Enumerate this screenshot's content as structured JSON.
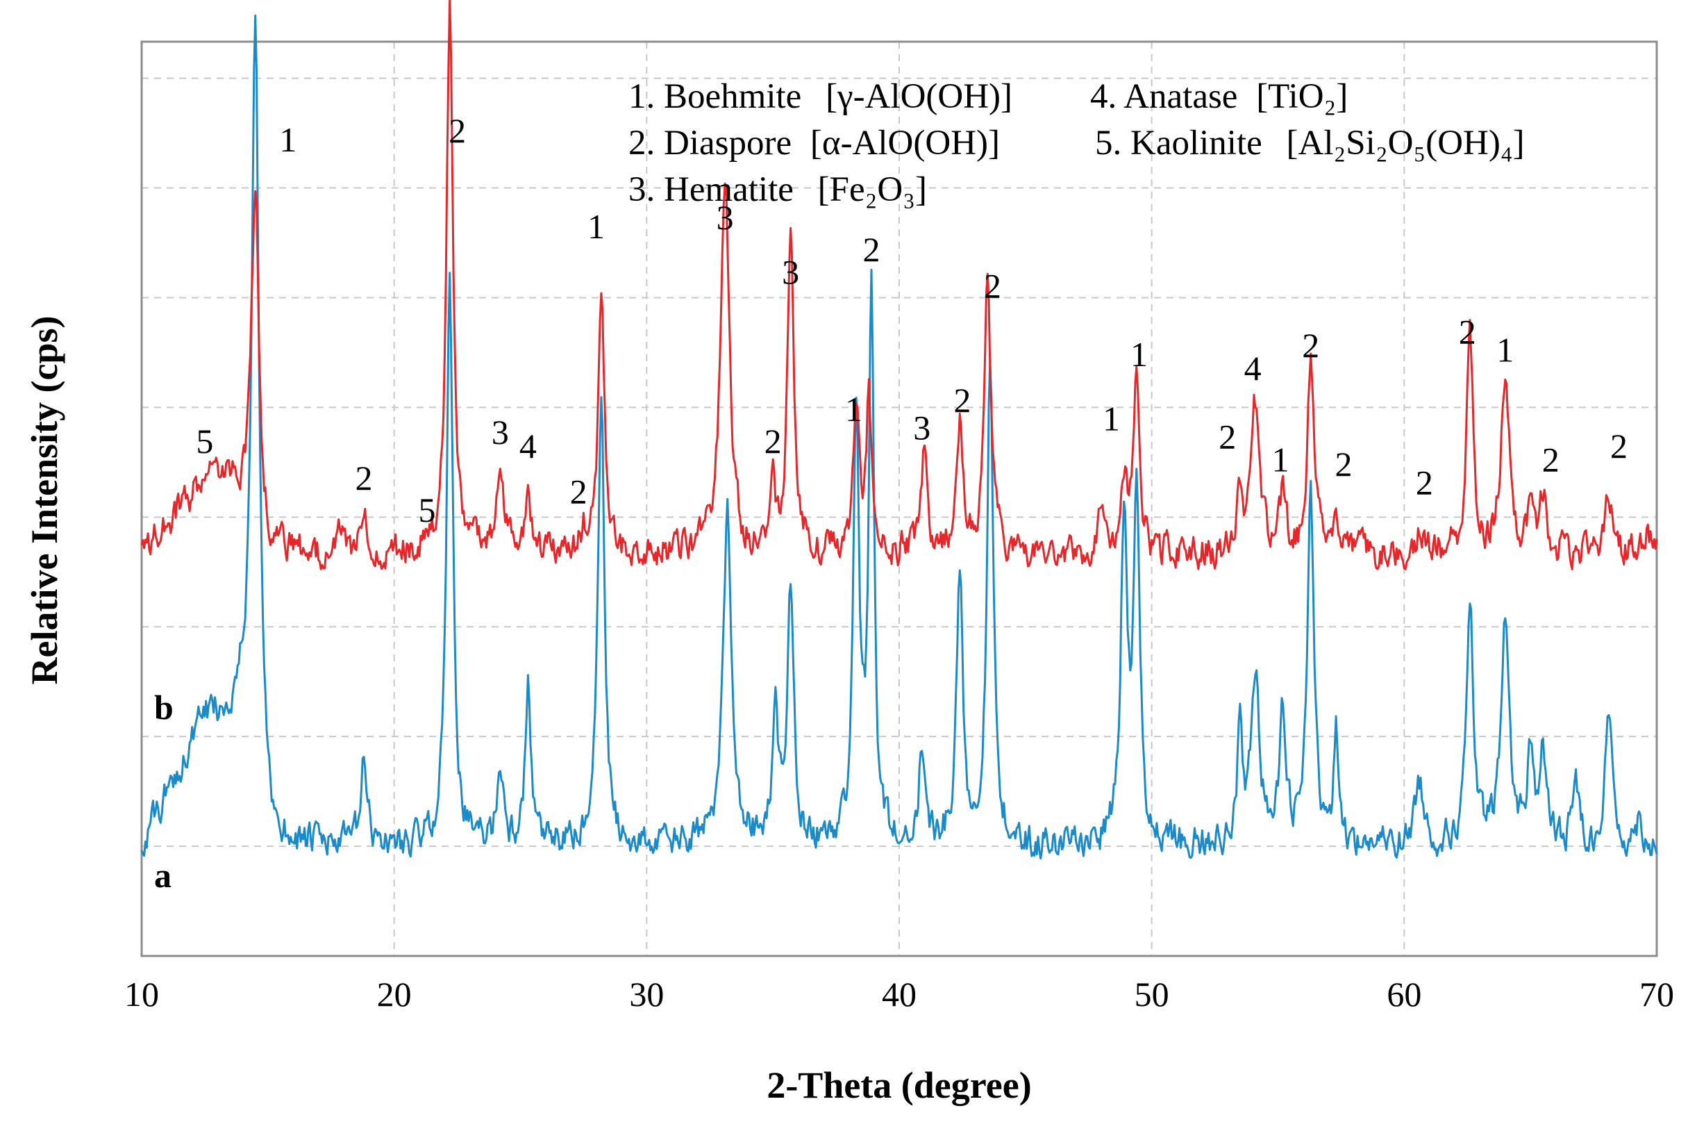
{
  "chart_data": {
    "type": "line",
    "title": "",
    "xlabel": "2-Theta (degree)",
    "ylabel": "Relative Intensity (cps)",
    "xlim": [
      10,
      70
    ],
    "ylim": [
      0,
      100
    ],
    "x_ticks": [
      10,
      20,
      30,
      40,
      50,
      60,
      70
    ],
    "y_grid_levels": [
      0,
      12,
      24,
      36,
      48,
      60,
      72,
      84,
      96
    ],
    "grid": true,
    "legend": [
      {
        "id": "1",
        "text": "1. Boehmite",
        "formula": "[γ-AlO(OH)]"
      },
      {
        "id": "2",
        "text": "2. Diaspore",
        "formula": "[α-AlO(OH)]"
      },
      {
        "id": "3",
        "text": "3. Hematite",
        "formula": "[Fe₂O₃]"
      },
      {
        "id": "4",
        "text": "4. Anatase",
        "formula": "[TiO₂]"
      },
      {
        "id": "5",
        "text": "5. Kaolinite",
        "formula": "[Al₂Si₂O₅(OH)₄]"
      }
    ],
    "series": [
      {
        "name": "a",
        "color": "#1a8ac8",
        "baseline": 12,
        "hump": {
          "start": 10,
          "rise_end": 12.5,
          "plateau_end": 14.0,
          "fall_end": 15.0,
          "height": 14
        },
        "peaks": [
          [
            14.5,
            82,
            0.18
          ],
          [
            18.8,
            9,
            0.15
          ],
          [
            22.2,
            63,
            0.15
          ],
          [
            24.2,
            9,
            0.15
          ],
          [
            25.3,
            18,
            0.12
          ],
          [
            28.2,
            50,
            0.15
          ],
          [
            33.2,
            37,
            0.2
          ],
          [
            35.1,
            17,
            0.12
          ],
          [
            35.7,
            28,
            0.15
          ],
          [
            38.3,
            45,
            0.15
          ],
          [
            38.9,
            61,
            0.12
          ],
          [
            40.9,
            10,
            0.15
          ],
          [
            42.4,
            29,
            0.15
          ],
          [
            43.6,
            52,
            0.15
          ],
          [
            48.9,
            35,
            0.15
          ],
          [
            49.4,
            37,
            0.15
          ],
          [
            53.5,
            13,
            0.12
          ],
          [
            54.1,
            19,
            0.2
          ],
          [
            55.2,
            14,
            0.15
          ],
          [
            56.3,
            39,
            0.15
          ],
          [
            57.3,
            12,
            0.12
          ],
          [
            60.6,
            7,
            0.2
          ],
          [
            62.6,
            27,
            0.15
          ],
          [
            64.0,
            24,
            0.2
          ],
          [
            65.0,
            10,
            0.15
          ],
          [
            65.5,
            10,
            0.15
          ],
          [
            66.8,
            7,
            0.15
          ],
          [
            68.1,
            15,
            0.15
          ],
          [
            69.3,
            3,
            0.15
          ]
        ]
      },
      {
        "name": "b",
        "color": "#e8262a",
        "baseline": 44,
        "hump": {
          "start": 10,
          "rise_end": 12.5,
          "plateau_end": 13.5,
          "fall_end": 15.0,
          "height": 8
        },
        "peaks": [
          [
            14.5,
            38,
            0.18
          ],
          [
            17.8,
            2,
            0.15
          ],
          [
            18.8,
            5,
            0.15
          ],
          [
            22.2,
            60,
            0.15
          ],
          [
            24.2,
            10,
            0.15
          ],
          [
            25.3,
            8,
            0.12
          ],
          [
            27.5,
            2,
            0.15
          ],
          [
            28.2,
            28,
            0.15
          ],
          [
            33.1,
            42,
            0.2
          ],
          [
            35.0,
            7,
            0.12
          ],
          [
            35.7,
            36,
            0.15
          ],
          [
            38.3,
            15,
            0.15
          ],
          [
            38.8,
            16,
            0.12
          ],
          [
            41.0,
            11,
            0.15
          ],
          [
            42.4,
            14,
            0.15
          ],
          [
            43.5,
            31,
            0.15
          ],
          [
            48.0,
            4,
            0.15
          ],
          [
            48.9,
            8,
            0.15
          ],
          [
            49.4,
            19,
            0.15
          ],
          [
            53.5,
            7,
            0.12
          ],
          [
            54.1,
            16,
            0.2
          ],
          [
            55.2,
            6,
            0.15
          ],
          [
            56.3,
            22,
            0.15
          ],
          [
            57.3,
            5,
            0.15
          ],
          [
            60.6,
            2,
            0.2
          ],
          [
            62.6,
            24,
            0.15
          ],
          [
            64.0,
            19,
            0.2
          ],
          [
            65.0,
            5,
            0.15
          ],
          [
            65.5,
            6,
            0.15
          ],
          [
            68.1,
            6,
            0.2
          ],
          [
            69.6,
            2,
            0.15
          ]
        ]
      }
    ],
    "series_letters": {
      "a": "a",
      "b": "b"
    },
    "peak_labels": [
      {
        "text": "1",
        "x": 15.8,
        "y": 88
      },
      {
        "text": "2",
        "x": 22.5,
        "y": 89
      },
      {
        "text": "5",
        "x": 12.5,
        "y": 55
      },
      {
        "text": "2",
        "x": 18.8,
        "y": 51
      },
      {
        "text": "5",
        "x": 21.3,
        "y": 47.5
      },
      {
        "text": "3",
        "x": 24.2,
        "y": 56
      },
      {
        "text": "4",
        "x": 25.3,
        "y": 54.5
      },
      {
        "text": "2",
        "x": 27.3,
        "y": 49.5
      },
      {
        "text": "1",
        "x": 28.0,
        "y": 78.5
      },
      {
        "text": "3",
        "x": 33.1,
        "y": 79.5
      },
      {
        "text": "3",
        "x": 35.7,
        "y": 73.5
      },
      {
        "text": "2",
        "x": 38.9,
        "y": 76
      },
      {
        "text": "2",
        "x": 35.0,
        "y": 55
      },
      {
        "text": "1",
        "x": 38.2,
        "y": 58.5
      },
      {
        "text": "3",
        "x": 40.9,
        "y": 56.5
      },
      {
        "text": "2",
        "x": 42.5,
        "y": 59.5
      },
      {
        "text": "2",
        "x": 43.7,
        "y": 72
      },
      {
        "text": "1",
        "x": 49.5,
        "y": 64.5
      },
      {
        "text": "1",
        "x": 48.4,
        "y": 57.5
      },
      {
        "text": "4",
        "x": 54.0,
        "y": 63
      },
      {
        "text": "2",
        "x": 53.0,
        "y": 55.5
      },
      {
        "text": "1",
        "x": 55.1,
        "y": 53
      },
      {
        "text": "2",
        "x": 56.3,
        "y": 65.5
      },
      {
        "text": "2",
        "x": 57.6,
        "y": 52.5
      },
      {
        "text": "2",
        "x": 60.8,
        "y": 50.5
      },
      {
        "text": "2",
        "x": 62.5,
        "y": 67
      },
      {
        "text": "1",
        "x": 64.0,
        "y": 65
      },
      {
        "text": "2",
        "x": 65.8,
        "y": 53
      },
      {
        "text": "2",
        "x": 68.5,
        "y": 54.5
      }
    ]
  }
}
